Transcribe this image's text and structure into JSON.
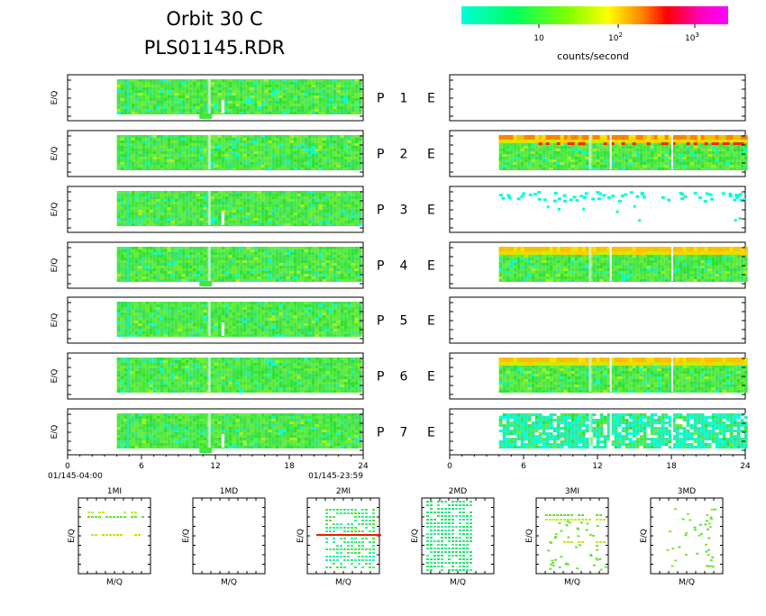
{
  "header": {
    "title": "Orbit 30 C",
    "subtitle": "PLS01145.RDR"
  },
  "colorbar": {
    "label": "counts/second",
    "ticks": [
      "10",
      "10",
      "10"
    ],
    "tick_exponents": [
      "",
      "2",
      "3"
    ],
    "colors": [
      "#00ffd8",
      "#00ff60",
      "#80ff00",
      "#ffff00",
      "#ff8000",
      "#ff0000",
      "#ff00c0",
      "#ff00ff"
    ]
  },
  "chart_data": [
    {
      "type": "heatmap",
      "name": "E/Q time spectrograms, P 1–7 (I and E)",
      "ylabel": "E/Q",
      "rows": [
        "P 1 E",
        "P 2 E",
        "P 3 E",
        "P 4 E",
        "P 5 E",
        "P 6 E",
        "P 7 E"
      ],
      "row_letter": "P",
      "row_numbers": [
        "1",
        "2",
        "3",
        "4",
        "5",
        "6",
        "7"
      ],
      "row_letter_right": "E",
      "x_ticks": [
        "0",
        "6",
        "12",
        "18",
        "24"
      ],
      "xlim": [
        0,
        24
      ],
      "x_start_label": "01/145-04:00",
      "x_end_label": "01/145-23:59",
      "left_panels": {
        "data_start_hour": 4,
        "data_end_hour": 23.9,
        "gap_hours": [
          12.5
        ],
        "dominant_color": "#40e840",
        "has_data": [
          true,
          true,
          true,
          true,
          true,
          true,
          true
        ]
      },
      "right_panels": {
        "data_start_hour": 4,
        "data_end_hour": 24,
        "has_data": [
          false,
          true,
          "sparse",
          true,
          false,
          true,
          true
        ],
        "dominant_color": [
          "",
          "#40e840",
          "#00ffd8",
          "#40e840",
          "",
          "#40e840",
          "#00ffd8"
        ],
        "top_band_color": [
          "",
          "#ff8000",
          "",
          "#ffc000",
          "",
          "#ffc000",
          ""
        ]
      }
    },
    {
      "type": "heatmap",
      "name": "E/Q vs M/Q panels",
      "panels": [
        {
          "title": "1MI",
          "xlabel": "M/Q",
          "ylabel": "E/Q",
          "content": "few-rows"
        },
        {
          "title": "1MD",
          "xlabel": "M/Q",
          "ylabel": "E/Q",
          "content": "empty"
        },
        {
          "title": "2MI",
          "xlabel": "M/Q",
          "ylabel": "E/Q",
          "content": "dense-with-red-line"
        },
        {
          "title": "2MD",
          "xlabel": "M/Q",
          "ylabel": "E/Q",
          "content": "dense"
        },
        {
          "title": "3MI",
          "xlabel": "M/Q",
          "ylabel": "E/Q",
          "content": "scatter"
        },
        {
          "title": "3MD",
          "xlabel": "M/Q",
          "ylabel": "E/Q",
          "content": "sparse-scatter"
        }
      ]
    }
  ]
}
